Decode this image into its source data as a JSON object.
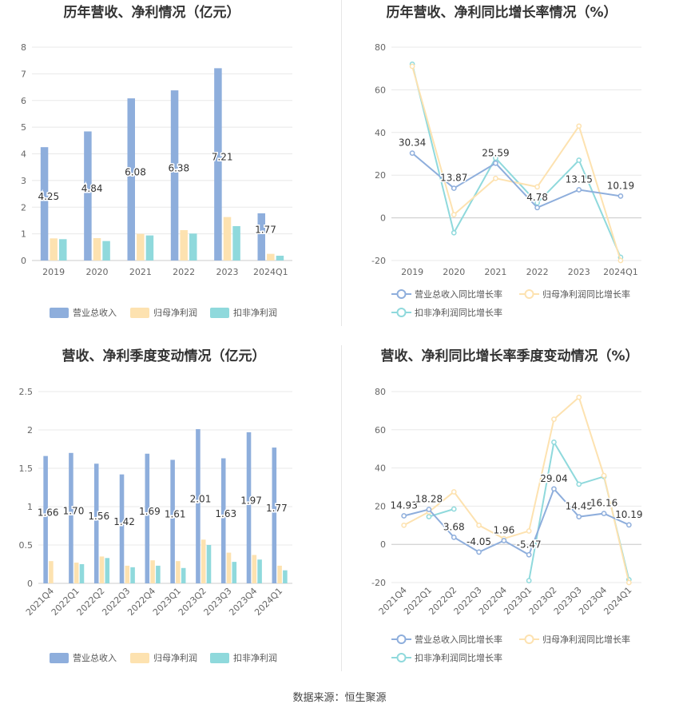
{
  "colors": {
    "revenue": "#8eaedc",
    "net_profit": "#fde2b0",
    "deducted_profit": "#8fd9dc",
    "grid": "#e8e8e8",
    "axis_text": "#666666",
    "title": "#333333"
  },
  "footer": "数据来源：恒生聚源",
  "chart_data": [
    {
      "type": "bar",
      "title": "历年营收、净利情况（亿元）",
      "categories": [
        "2019",
        "2020",
        "2021",
        "2022",
        "2023",
        "2024Q1"
      ],
      "ylim": [
        0,
        8
      ],
      "yticks": [
        0,
        1,
        2,
        3,
        4,
        5,
        6,
        7,
        8
      ],
      "grid": true,
      "legend": "bottom",
      "series": [
        {
          "name": "营业总收入",
          "color": "#8eaedc",
          "values": [
            4.25,
            4.84,
            6.08,
            6.38,
            7.21,
            1.77
          ],
          "labels": [
            "4.25",
            "4.84",
            "6.08",
            "6.38",
            "7.21",
            "1.77"
          ]
        },
        {
          "name": "归母净利润",
          "color": "#fde2b0",
          "values": [
            0.83,
            0.84,
            1.0,
            1.14,
            1.63,
            0.25
          ]
        },
        {
          "name": "扣非净利润",
          "color": "#8fd9dc",
          "values": [
            0.8,
            0.73,
            0.94,
            1.01,
            1.29,
            0.18
          ]
        }
      ]
    },
    {
      "type": "line",
      "title": "历年营收、净利同比增长率情况（%）",
      "categories": [
        "2019",
        "2020",
        "2021",
        "2022",
        "2023",
        "2024Q1"
      ],
      "ylim": [
        -20,
        80
      ],
      "yticks": [
        -20,
        0,
        20,
        40,
        60,
        80
      ],
      "grid": true,
      "legend": "bottom",
      "series": [
        {
          "name": "营业总收入同比增长率",
          "color": "#8eaedc",
          "values": [
            30.34,
            13.87,
            25.59,
            4.78,
            13.15,
            10.19
          ],
          "labels": [
            "30.34",
            "13.87",
            "25.59",
            "4.78",
            "13.15",
            "10.19"
          ]
        },
        {
          "name": "归母净利润同比增长率",
          "color": "#fde2b0",
          "values": [
            71.0,
            1.5,
            18.5,
            14.5,
            43.0,
            -20.0
          ]
        },
        {
          "name": "扣非净利润同比增长率",
          "color": "#8fd9dc",
          "values": [
            72.0,
            -7.0,
            28.0,
            7.0,
            27.0,
            -18.5
          ]
        }
      ]
    },
    {
      "type": "bar",
      "title": "营收、净利季度变动情况（亿元）",
      "categories": [
        "2021Q4",
        "2022Q1",
        "2022Q2",
        "2022Q3",
        "2022Q4",
        "2023Q1",
        "2023Q2",
        "2023Q3",
        "2023Q4",
        "2024Q1"
      ],
      "ylim": [
        0,
        2.5
      ],
      "yticks": [
        0,
        0.5,
        1,
        1.5,
        2,
        2.5
      ],
      "ytick_labels": [
        "0",
        "0.5",
        "1",
        "1.5",
        "2",
        "2.5"
      ],
      "grid": true,
      "legend": "bottom",
      "series": [
        {
          "name": "营业总收入",
          "color": "#8eaedc",
          "values": [
            1.66,
            1.7,
            1.56,
            1.42,
            1.69,
            1.61,
            2.01,
            1.63,
            1.97,
            1.77
          ],
          "labels": [
            "1.66",
            "1.70",
            "1.56",
            "1.42",
            "1.69",
            "1.61",
            "2.01",
            "1.63",
            "1.97",
            "1.77"
          ]
        },
        {
          "name": "归母净利润",
          "color": "#fde2b0",
          "values": [
            0.29,
            0.27,
            0.35,
            0.23,
            0.3,
            0.29,
            0.57,
            0.4,
            0.37,
            0.23
          ]
        },
        {
          "name": "扣非净利润",
          "color": "#8fd9dc",
          "values": [
            0.0,
            0.25,
            0.33,
            0.21,
            0.23,
            0.2,
            0.5,
            0.28,
            0.31,
            0.17
          ]
        }
      ]
    },
    {
      "type": "line",
      "title": "营收、净利同比增长率季度变动情况（%）",
      "categories": [
        "2021Q4",
        "2022Q1",
        "2022Q2",
        "2022Q3",
        "2022Q4",
        "2023Q1",
        "2023Q2",
        "2023Q3",
        "2023Q4",
        "2024Q1"
      ],
      "ylim": [
        -20,
        80
      ],
      "yticks": [
        -20,
        0,
        20,
        40,
        60,
        80
      ],
      "grid": true,
      "legend": "bottom",
      "series": [
        {
          "name": "营业总收入同比增长率",
          "color": "#8eaedc",
          "values": [
            14.93,
            18.28,
            3.68,
            -4.05,
            1.96,
            -5.47,
            29.04,
            14.45,
            16.16,
            10.19
          ],
          "labels": [
            "14.93",
            "18.28",
            "3.68",
            "-4.05",
            "1.96",
            "-5.47",
            "29.04",
            "14.45",
            "16.16",
            "10.19"
          ]
        },
        {
          "name": "归母净利润同比增长率",
          "color": "#fde2b0",
          "values": [
            10.0,
            17.0,
            27.5,
            10.0,
            3.0,
            7.0,
            65.5,
            77.0,
            36.0,
            -20.0
          ]
        },
        {
          "name": "扣非净利润同比增长率",
          "color": "#8fd9dc",
          "values": [
            null,
            14.5,
            18.5,
            null,
            null,
            -19.0,
            53.5,
            31.5,
            35.5,
            -18.5
          ]
        }
      ]
    }
  ]
}
